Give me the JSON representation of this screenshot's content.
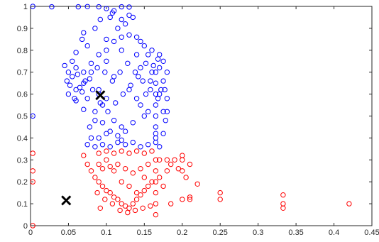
{
  "chart_data": {
    "type": "scatter",
    "xlim": [
      0,
      0.45
    ],
    "ylim": [
      0,
      1
    ],
    "grid": false,
    "title": "",
    "xlabel": "",
    "ylabel": "",
    "xticks": [
      0,
      0.05,
      0.1,
      0.15,
      0.2,
      0.25,
      0.3,
      0.35,
      0.4,
      0.45
    ],
    "xtick_labels": [
      "0",
      "0.05",
      "0.1",
      "0.15",
      "0.2",
      "0.25",
      "0.3",
      "0.35",
      "0.4",
      "0.45"
    ],
    "yticks": [
      0,
      0.1,
      0.2,
      0.3,
      0.4,
      0.5,
      0.6,
      0.7,
      0.8,
      0.9,
      1
    ],
    "ytick_labels": [
      "0",
      "0.1",
      "0.2",
      "0.3",
      "0.4",
      "0.5",
      "0.6",
      "0.7",
      "0.8",
      "0.9",
      "1"
    ],
    "marker": "circle-open",
    "series": [
      {
        "color": "#0000ff",
        "points": [
          [
            0.09,
            0.6
          ],
          [
            0.08,
            0.7
          ],
          [
            0.1,
            0.75
          ],
          [
            0.07,
            0.65
          ],
          [
            0.12,
            0.8
          ],
          [
            0.11,
            0.68
          ],
          [
            0.095,
            0.55
          ],
          [
            0.085,
            0.48
          ],
          [
            0.13,
            0.62
          ],
          [
            0.1,
            0.85
          ],
          [
            0.115,
            0.9
          ],
          [
            0.105,
            0.95
          ],
          [
            0.125,
            0.92
          ],
          [
            0.14,
            0.78
          ],
          [
            0.06,
            0.72
          ],
          [
            0.055,
            0.68
          ],
          [
            0.05,
            0.7
          ],
          [
            0.075,
            0.82
          ],
          [
            0.09,
            0.4
          ],
          [
            0.1,
            0.42
          ],
          [
            0.12,
            0.45
          ],
          [
            0.15,
            0.5
          ],
          [
            0.165,
            0.4
          ],
          [
            0.16,
            0.7
          ],
          [
            0.17,
            0.6
          ],
          [
            0.075,
            0.37
          ],
          [
            0.06,
            0.62
          ],
          [
            0.145,
            0.72
          ],
          [
            0.155,
            0.52
          ],
          [
            0.14,
            0.58
          ],
          [
            0.165,
            0.45
          ],
          [
            0.165,
            0.5
          ],
          [
            0.165,
            0.55
          ],
          [
            0.165,
            0.6
          ],
          [
            0.165,
            0.65
          ],
          [
            0.165,
            0.7
          ],
          [
            0.003,
            0.5
          ],
          [
            0.003,
            1.0
          ],
          [
            0.028,
            0.998
          ],
          [
            0.063,
            0.998
          ],
          [
            0.075,
            0.999
          ],
          [
            0.09,
            0.998
          ],
          [
            0.12,
            0.998
          ],
          [
            0.13,
            0.997
          ],
          [
            0.1,
            0.99
          ],
          [
            0.11,
            0.98
          ],
          [
            0.108,
            0.97
          ],
          [
            0.13,
            0.96
          ],
          [
            0.12,
            0.94
          ],
          [
            0.092,
            0.94
          ],
          [
            0.135,
            0.95
          ],
          [
            0.085,
            0.9
          ],
          [
            0.07,
            0.88
          ],
          [
            0.068,
            0.85
          ],
          [
            0.06,
            0.79
          ],
          [
            0.055,
            0.75
          ],
          [
            0.045,
            0.73
          ],
          [
            0.048,
            0.66
          ],
          [
            0.05,
            0.6
          ],
          [
            0.06,
            0.57
          ],
          [
            0.07,
            0.53
          ],
          [
            0.078,
            0.45
          ],
          [
            0.08,
            0.4
          ],
          [
            0.085,
            0.36
          ],
          [
            0.095,
            0.37
          ],
          [
            0.105,
            0.36
          ],
          [
            0.115,
            0.38
          ],
          [
            0.125,
            0.37
          ],
          [
            0.135,
            0.38
          ],
          [
            0.145,
            0.36
          ],
          [
            0.155,
            0.37
          ],
          [
            0.17,
            0.36
          ],
          [
            0.175,
            0.42
          ],
          [
            0.178,
            0.48
          ],
          [
            0.175,
            0.52
          ],
          [
            0.18,
            0.58
          ],
          [
            0.172,
            0.62
          ],
          [
            0.17,
            0.72
          ],
          [
            0.168,
            0.76
          ],
          [
            0.16,
            0.8
          ],
          [
            0.155,
            0.78
          ],
          [
            0.15,
            0.82
          ],
          [
            0.145,
            0.84
          ],
          [
            0.14,
            0.86
          ],
          [
            0.13,
            0.87
          ],
          [
            0.12,
            0.86
          ],
          [
            0.11,
            0.84
          ],
          [
            0.1,
            0.8
          ],
          [
            0.09,
            0.78
          ],
          [
            0.08,
            0.74
          ],
          [
            0.07,
            0.7
          ],
          [
            0.065,
            0.63
          ],
          [
            0.075,
            0.58
          ],
          [
            0.085,
            0.52
          ],
          [
            0.095,
            0.47
          ],
          [
            0.105,
            0.43
          ],
          [
            0.115,
            0.41
          ],
          [
            0.125,
            0.43
          ],
          [
            0.135,
            0.47
          ],
          [
            0.145,
            0.55
          ],
          [
            0.152,
            0.6
          ],
          [
            0.158,
            0.66
          ],
          [
            0.162,
            0.73
          ],
          [
            0.152,
            0.74
          ],
          [
            0.142,
            0.68
          ],
          [
            0.132,
            0.64
          ],
          [
            0.122,
            0.6
          ],
          [
            0.112,
            0.56
          ],
          [
            0.102,
            0.52
          ],
          [
            0.092,
            0.56
          ],
          [
            0.082,
            0.62
          ],
          [
            0.072,
            0.66
          ],
          [
            0.062,
            0.69
          ],
          [
            0.052,
            0.64
          ],
          [
            0.058,
            0.58
          ],
          [
            0.068,
            0.61
          ],
          [
            0.078,
            0.67
          ],
          [
            0.088,
            0.72
          ],
          [
            0.098,
            0.7
          ],
          [
            0.108,
            0.66
          ],
          [
            0.118,
            0.7
          ],
          [
            0.128,
            0.74
          ],
          [
            0.138,
            0.7
          ],
          [
            0.148,
            0.66
          ],
          [
            0.158,
            0.62
          ],
          [
            0.168,
            0.58
          ],
          [
            0.165,
            0.42
          ],
          [
            0.165,
            0.38
          ],
          [
            0.12,
            0.39
          ],
          [
            0.11,
            0.48
          ],
          [
            0.1,
            0.58
          ],
          [
            0.09,
            0.62
          ],
          [
            0.18,
            0.52
          ],
          [
            0.177,
            0.62
          ],
          [
            0.175,
            0.66
          ],
          [
            0.18,
            0.7
          ],
          [
            0.175,
            0.75
          ],
          [
            0.17,
            0.78
          ]
        ]
      },
      {
        "color": "#ff0000",
        "points": [
          [
            0.1,
            0.3
          ],
          [
            0.12,
            0.2
          ],
          [
            0.13,
            0.18
          ],
          [
            0.11,
            0.25
          ],
          [
            0.09,
            0.28
          ],
          [
            0.14,
            0.15
          ],
          [
            0.15,
            0.22
          ],
          [
            0.165,
            0.1
          ],
          [
            0.165,
            0.05
          ],
          [
            0.17,
            0.3
          ],
          [
            0.18,
            0.25
          ],
          [
            0.2,
            0.12
          ],
          [
            0.21,
            0.13
          ],
          [
            0.25,
            0.12
          ],
          [
            0.25,
            0.15
          ],
          [
            0.333,
            0.14
          ],
          [
            0.333,
            0.1
          ],
          [
            0.333,
            0.08
          ],
          [
            0.42,
            0.1
          ],
          [
            0.003,
            0.33
          ],
          [
            0.003,
            0.25
          ],
          [
            0.003,
            0.2
          ],
          [
            0.003,
            0.0
          ],
          [
            0.07,
            0.32
          ],
          [
            0.075,
            0.28
          ],
          [
            0.08,
            0.25
          ],
          [
            0.085,
            0.22
          ],
          [
            0.09,
            0.2
          ],
          [
            0.095,
            0.18
          ],
          [
            0.1,
            0.16
          ],
          [
            0.105,
            0.15
          ],
          [
            0.11,
            0.13
          ],
          [
            0.115,
            0.12
          ],
          [
            0.12,
            0.1
          ],
          [
            0.125,
            0.09
          ],
          [
            0.13,
            0.08
          ],
          [
            0.135,
            0.1
          ],
          [
            0.14,
            0.12
          ],
          [
            0.145,
            0.14
          ],
          [
            0.15,
            0.16
          ],
          [
            0.155,
            0.18
          ],
          [
            0.16,
            0.2
          ],
          [
            0.165,
            0.15
          ],
          [
            0.165,
            0.2
          ],
          [
            0.165,
            0.25
          ],
          [
            0.165,
            0.3
          ],
          [
            0.17,
            0.22
          ],
          [
            0.175,
            0.18
          ],
          [
            0.18,
            0.3
          ],
          [
            0.185,
            0.28
          ],
          [
            0.19,
            0.3
          ],
          [
            0.195,
            0.26
          ],
          [
            0.2,
            0.25
          ],
          [
            0.205,
            0.22
          ],
          [
            0.2,
            0.3
          ],
          [
            0.21,
            0.28
          ],
          [
            0.22,
            0.19
          ],
          [
            0.21,
            0.12
          ],
          [
            0.092,
            0.08
          ],
          [
            0.185,
            0.1
          ],
          [
            0.2,
            0.32
          ],
          [
            0.09,
            0.33
          ],
          [
            0.1,
            0.34
          ],
          [
            0.11,
            0.33
          ],
          [
            0.12,
            0.34
          ],
          [
            0.13,
            0.33
          ],
          [
            0.14,
            0.34
          ],
          [
            0.15,
            0.33
          ],
          [
            0.16,
            0.34
          ],
          [
            0.095,
            0.26
          ],
          [
            0.105,
            0.27
          ],
          [
            0.115,
            0.28
          ],
          [
            0.125,
            0.26
          ],
          [
            0.135,
            0.24
          ],
          [
            0.145,
            0.26
          ],
          [
            0.155,
            0.28
          ],
          [
            0.128,
            0.06
          ],
          [
            0.138,
            0.07
          ],
          [
            0.148,
            0.08
          ],
          [
            0.158,
            0.09
          ],
          [
            0.118,
            0.07
          ],
          [
            0.108,
            0.1
          ],
          [
            0.098,
            0.12
          ],
          [
            0.088,
            0.15
          ]
        ]
      }
    ],
    "centroids": [
      {
        "x": 0.092,
        "y": 0.595
      },
      {
        "x": 0.047,
        "y": 0.115
      }
    ]
  }
}
